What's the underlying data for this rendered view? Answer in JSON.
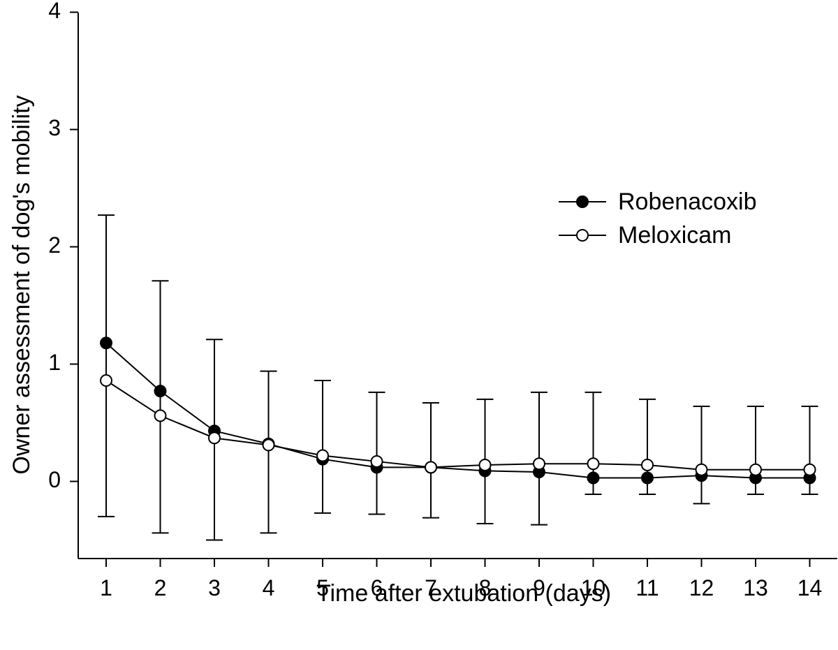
{
  "chart_data": {
    "type": "line",
    "title": "",
    "xlabel": "Time after extubation (days)",
    "ylabel": "Owner assessment of dog's mobility",
    "x": [
      1,
      2,
      3,
      4,
      5,
      6,
      7,
      8,
      9,
      10,
      11,
      12,
      13,
      14
    ],
    "xticks": [
      "1",
      "2",
      "3",
      "4",
      "5",
      "6",
      "7",
      "8",
      "9",
      "10",
      "11",
      "12",
      "13",
      "14"
    ],
    "xlim": [
      0.5,
      14.5
    ],
    "ylim": [
      -0.65,
      4
    ],
    "yticks": [
      "0",
      "1",
      "2",
      "3",
      "4"
    ],
    "grid": false,
    "legend_position": "right",
    "series": [
      {
        "name": "Robenacoxib",
        "marker": "filled-circle",
        "color": "#000000",
        "values": [
          1.18,
          0.77,
          0.43,
          0.32,
          0.19,
          0.12,
          0.12,
          0.09,
          0.08,
          0.03,
          0.03,
          0.05,
          0.03,
          0.03
        ]
      },
      {
        "name": "Meloxicam",
        "marker": "open-circle",
        "color": "#000000",
        "values": [
          0.86,
          0.56,
          0.37,
          0.31,
          0.22,
          0.17,
          0.12,
          0.14,
          0.15,
          0.15,
          0.14,
          0.1,
          0.1,
          0.1
        ]
      }
    ],
    "error_bars": {
      "upper": [
        2.27,
        1.71,
        1.21,
        0.94,
        0.86,
        0.76,
        0.67,
        0.7,
        0.76,
        0.76,
        0.7,
        0.64,
        0.64,
        0.64
      ],
      "lower": [
        -0.3,
        -0.44,
        -0.5,
        -0.44,
        -0.27,
        -0.28,
        -0.31,
        -0.36,
        -0.37,
        -0.11,
        -0.11,
        -0.19,
        -0.11,
        -0.11
      ]
    }
  }
}
